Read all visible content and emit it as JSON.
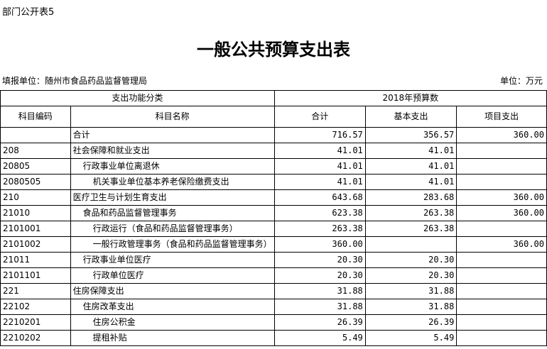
{
  "header": {
    "label": "部门公开表5",
    "title": "一般公共预算支出表",
    "unit_org": "填报单位：随州市食品药品监督管理局",
    "unit": "单位：万元"
  },
  "table": {
    "group_headers": [
      "支出功能分类",
      "2018年预算数"
    ],
    "columns": [
      "科目编码",
      "科目名称",
      "合计",
      "基本支出",
      "项目支出"
    ],
    "rows": [
      {
        "name": "合计",
        "total": "716.57",
        "basic": "356.57",
        "project": "360.00"
      },
      {
        "code": "208",
        "name": "社会保障和就业支出",
        "total": "41.01",
        "basic": "41.01"
      },
      {
        "code": "20805",
        "name": "行政事业单位离退休",
        "total": "41.01",
        "basic": "41.01"
      },
      {
        "code": "2080505",
        "name": "机关事业单位基本养老保险缴费支出",
        "total": "41.01",
        "basic": "41.01"
      },
      {
        "code": "210",
        "name": "医疗卫生与计划生育支出",
        "total": "643.68",
        "basic": "283.68",
        "project": "360.00"
      },
      {
        "code": "21010",
        "name": "食品和药品监督管理事务",
        "total": "623.38",
        "basic": "263.38",
        "project": "360.00"
      },
      {
        "code": "2101001",
        "name": "行政运行（食品和药品监督管理事务）",
        "total": "263.38",
        "basic": "263.38"
      },
      {
        "code": "2101002",
        "name": "一般行政管理事务（食品和药品监督管理事务）",
        "total": "360.00",
        "project": "360.00"
      },
      {
        "code": "21011",
        "name": "行政事业单位医疗",
        "total": "20.30",
        "basic": "20.30"
      },
      {
        "code": "2101101",
        "name": "行政单位医疗",
        "total": "20.30",
        "basic": "20.30"
      },
      {
        "code": "221",
        "name": "住房保障支出",
        "total": "31.88",
        "basic": "31.88"
      },
      {
        "code": "22102",
        "name": "住房改革支出",
        "total": "31.88",
        "basic": "31.88"
      },
      {
        "code": "2210201",
        "name": "住房公积金",
        "total": "26.39",
        "basic": "26.39"
      },
      {
        "code": "2210202",
        "name": "提租补贴",
        "total": "5.49",
        "basic": "5.49"
      }
    ]
  }
}
